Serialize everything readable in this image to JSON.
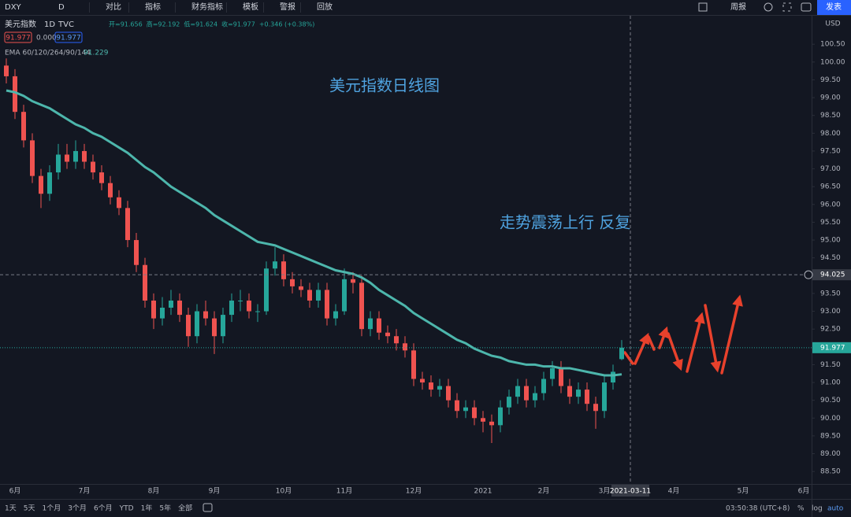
{
  "toolbar": {
    "symbol": "DXY",
    "interval": "D",
    "items": [
      "对比",
      "指标",
      "财务指标",
      "模板",
      "警报",
      "回放"
    ],
    "layout": "周报",
    "publish": "发表"
  },
  "legend": {
    "name": "美元指数",
    "interval": "1D",
    "exchange": "TVC",
    "ohlc": [
      "开=91.656",
      "高=92.192",
      "低=91.624",
      "收=91.977",
      "+0.346 (+0.38%)"
    ],
    "spread": "0.000",
    "ema_label": "EMA 60/120/264/90/144"
  },
  "chart_data": {
    "type": "candlestick",
    "annotations": [
      "美元指数日线图",
      "走势震荡上行 反复"
    ],
    "currency": "USD",
    "up_color": "#26a69a",
    "down_color": "#ef5350",
    "categories": [
      null,
      "6月",
      null,
      null,
      null,
      null,
      null,
      null,
      null,
      "7月",
      null,
      null,
      null,
      null,
      null,
      null,
      null,
      "8月",
      null,
      null,
      null,
      null,
      null,
      null,
      "9月",
      null,
      null,
      null,
      null,
      null,
      null,
      null,
      "10月",
      null,
      null,
      null,
      null,
      null,
      null,
      "11月",
      null,
      null,
      null,
      null,
      null,
      null,
      null,
      "12月",
      null,
      null,
      null,
      null,
      null,
      null,
      null,
      "2021",
      null,
      null,
      null,
      null,
      null,
      null,
      "2月",
      null,
      null,
      null,
      null,
      null,
      null,
      "3月",
      null,
      null,
      null,
      null,
      null,
      null,
      null,
      "4月",
      null,
      null,
      null,
      null,
      null,
      null,
      null,
      "5月",
      null,
      null,
      null,
      null,
      null,
      null,
      "6月"
    ],
    "open": [
      99.9,
      99.6,
      98.6,
      97.8,
      96.8,
      96.3,
      96.9,
      97.4,
      97.2,
      97.5,
      97.2,
      96.9,
      96.6,
      96.2,
      95.9,
      95.0,
      94.3,
      93.3,
      92.8,
      93.1,
      93.3,
      92.9,
      92.3,
      93.0,
      92.8,
      92.3,
      92.9,
      93.3,
      93.3,
      93.0,
      93.0,
      94.2,
      94.4,
      93.9,
      93.7,
      93.6,
      93.3,
      93.6,
      92.8,
      93.0,
      93.9,
      93.8,
      92.5,
      92.8,
      92.4,
      92.3,
      92.1,
      91.9,
      91.1,
      91.0,
      90.8,
      90.9,
      90.5,
      90.2,
      90.3,
      90.0,
      89.9,
      89.8,
      90.3,
      90.6,
      90.9,
      90.5,
      90.7,
      91.1,
      91.4,
      90.9,
      90.6,
      90.8,
      90.4,
      90.2,
      91.0,
      91.656,
      null,
      null,
      null,
      null,
      null,
      null,
      null,
      null,
      null,
      null,
      null,
      null,
      null,
      null,
      null,
      null,
      null,
      null,
      null,
      null,
      null
    ],
    "high": [
      100.1,
      99.8,
      98.8,
      98.0,
      97.0,
      97.1,
      97.7,
      97.7,
      97.8,
      97.7,
      97.4,
      97.1,
      96.8,
      96.4,
      96.1,
      95.2,
      94.5,
      93.5,
      93.4,
      93.6,
      93.5,
      93.1,
      93.2,
      93.3,
      93.0,
      93.1,
      93.5,
      93.6,
      93.5,
      93.2,
      94.4,
      94.8,
      94.6,
      94.1,
      93.9,
      93.8,
      93.8,
      93.8,
      93.2,
      94.2,
      94.1,
      94.0,
      93.0,
      93.0,
      92.6,
      92.5,
      92.3,
      92.1,
      91.3,
      91.2,
      91.1,
      91.1,
      90.7,
      90.5,
      90.5,
      90.2,
      90.1,
      90.5,
      90.8,
      91.1,
      91.1,
      90.9,
      91.3,
      91.6,
      91.6,
      91.1,
      91.0,
      91.0,
      90.6,
      91.2,
      91.5,
      92.192,
      null,
      null,
      null,
      null,
      null,
      null,
      null,
      null,
      null,
      null,
      null,
      null,
      null,
      null,
      null,
      null,
      null,
      null,
      null,
      null,
      null
    ],
    "low": [
      99.4,
      98.4,
      97.6,
      96.6,
      95.9,
      96.1,
      96.7,
      97.0,
      97.0,
      97.0,
      96.7,
      96.4,
      96.0,
      95.7,
      94.8,
      94.1,
      93.1,
      92.5,
      92.6,
      92.9,
      92.7,
      92.0,
      92.1,
      92.6,
      91.8,
      92.1,
      92.7,
      93.0,
      92.8,
      92.7,
      92.9,
      94.0,
      93.7,
      93.5,
      93.4,
      93.1,
      93.1,
      92.6,
      92.6,
      92.9,
      93.5,
      92.3,
      92.3,
      92.2,
      92.1,
      91.9,
      91.7,
      90.9,
      90.8,
      90.6,
      90.6,
      90.3,
      90.0,
      90.0,
      89.8,
      89.6,
      89.3,
      89.6,
      90.1,
      90.4,
      90.3,
      90.3,
      90.5,
      90.9,
      90.7,
      90.4,
      90.4,
      90.2,
      89.7,
      90.0,
      90.8,
      91.624,
      null,
      null,
      null,
      null,
      null,
      null,
      null,
      null,
      null,
      null,
      null,
      null,
      null,
      null,
      null,
      null,
      null,
      null,
      null,
      null,
      null
    ],
    "close": [
      99.6,
      98.6,
      97.8,
      96.8,
      96.3,
      96.9,
      97.4,
      97.2,
      97.5,
      97.2,
      96.9,
      96.6,
      96.2,
      95.9,
      95.0,
      94.3,
      93.3,
      92.8,
      93.1,
      93.3,
      92.9,
      92.3,
      93.0,
      92.8,
      92.3,
      92.9,
      93.3,
      93.3,
      93.0,
      93.0,
      94.2,
      94.4,
      93.9,
      93.7,
      93.6,
      93.3,
      93.6,
      92.8,
      93.0,
      93.9,
      93.8,
      92.5,
      92.8,
      92.4,
      92.3,
      92.1,
      91.9,
      91.1,
      91.0,
      90.8,
      90.9,
      90.5,
      90.2,
      90.3,
      90.0,
      89.9,
      89.8,
      90.3,
      90.6,
      90.9,
      90.5,
      90.7,
      91.1,
      91.4,
      90.9,
      90.6,
      90.8,
      90.4,
      90.2,
      91.0,
      91.3,
      91.977,
      null,
      null,
      null,
      null,
      null,
      null,
      null,
      null,
      null,
      null,
      null,
      null,
      null,
      null,
      null,
      null,
      null,
      null,
      null,
      null,
      null
    ],
    "ema": {
      "color": "#4db6ac",
      "values": [
        99.2,
        99.15,
        99.05,
        98.9,
        98.8,
        98.7,
        98.55,
        98.4,
        98.25,
        98.15,
        98.0,
        97.9,
        97.75,
        97.6,
        97.45,
        97.25,
        97.05,
        96.9,
        96.7,
        96.5,
        96.35,
        96.2,
        96.05,
        95.9,
        95.7,
        95.55,
        95.4,
        95.25,
        95.1,
        94.95,
        94.9,
        94.85,
        94.75,
        94.65,
        94.55,
        94.45,
        94.35,
        94.25,
        94.15,
        94.1,
        94.05,
        93.95,
        93.8,
        93.6,
        93.45,
        93.3,
        93.15,
        92.95,
        92.8,
        92.65,
        92.5,
        92.35,
        92.2,
        92.1,
        91.95,
        91.85,
        91.75,
        91.7,
        91.6,
        91.55,
        91.5,
        91.5,
        91.45,
        91.45,
        91.4,
        91.4,
        91.35,
        91.3,
        91.25,
        91.2,
        91.2,
        91.229,
        null,
        null,
        null,
        null,
        null,
        null,
        null,
        null,
        null,
        null,
        null,
        null,
        null,
        null,
        null,
        null,
        null,
        null,
        null,
        null,
        null
      ]
    },
    "ylim": [
      88.15,
      101.3
    ],
    "yticks": [
      {
        "value": 88.5,
        "label": "88.50"
      },
      {
        "value": 89,
        "label": "89.00"
      },
      {
        "value": 89.5,
        "label": "89.50"
      },
      {
        "value": 90,
        "label": "90.00"
      },
      {
        "value": 90.5,
        "label": "90.50"
      },
      {
        "value": 91,
        "label": "91.00"
      },
      {
        "value": 91.5,
        "label": "91.50"
      },
      {
        "value": 92,
        "label": "92.00"
      },
      {
        "value": 92.5,
        "label": "92.50"
      },
      {
        "value": 93,
        "label": "93.00"
      },
      {
        "value": 93.5,
        "label": "93.50"
      },
      {
        "value": 94,
        "label": "94.00"
      },
      {
        "value": 94.5,
        "label": "94.50"
      },
      {
        "value": 95,
        "label": "95.00"
      },
      {
        "value": 95.5,
        "label": "95.50"
      },
      {
        "value": 96,
        "label": "96.00"
      },
      {
        "value": 96.5,
        "label": "96.50"
      },
      {
        "value": 97,
        "label": "97.00"
      },
      {
        "value": 97.5,
        "label": "97.50"
      },
      {
        "value": 98,
        "label": "98.00"
      },
      {
        "value": 98.5,
        "label": "98.50"
      },
      {
        "value": 99,
        "label": "99.00"
      },
      {
        "value": 99.5,
        "label": "99.50"
      },
      {
        "value": 100,
        "label": "100.00"
      },
      {
        "value": 100.5,
        "label": "100.50"
      }
    ],
    "crosshair": {
      "price": 94.025,
      "date": "2021-03-11"
    }
  },
  "bottom_bar": {
    "ranges": [
      "1天",
      "5天",
      "1个月",
      "3个月",
      "6个月",
      "YTD",
      "1年",
      "5年",
      "全部"
    ],
    "time": "03:50:38 (UTC+8)",
    "options": [
      "%",
      "log",
      "auto"
    ]
  }
}
